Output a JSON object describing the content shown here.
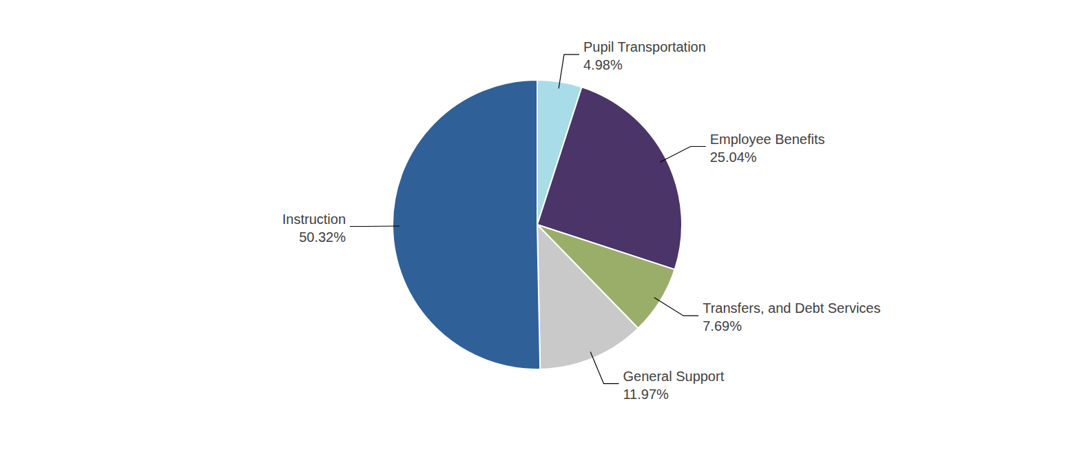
{
  "chart_data": {
    "type": "pie",
    "categories": [
      "Pupil Transportation",
      "Employee Benefits",
      "Transfers, and Debt Services",
      "General Support",
      "Instruction"
    ],
    "values": [
      4.98,
      25.04,
      7.69,
      11.97,
      50.32
    ],
    "value_labels": [
      "4.98%",
      "25.04%",
      "7.69%",
      "11.97%",
      "50.32%"
    ],
    "colors": [
      "#a8dce8",
      "#4a3468",
      "#9aae6a",
      "#c9c9c9",
      "#2f6198"
    ],
    "data_labels": true
  }
}
